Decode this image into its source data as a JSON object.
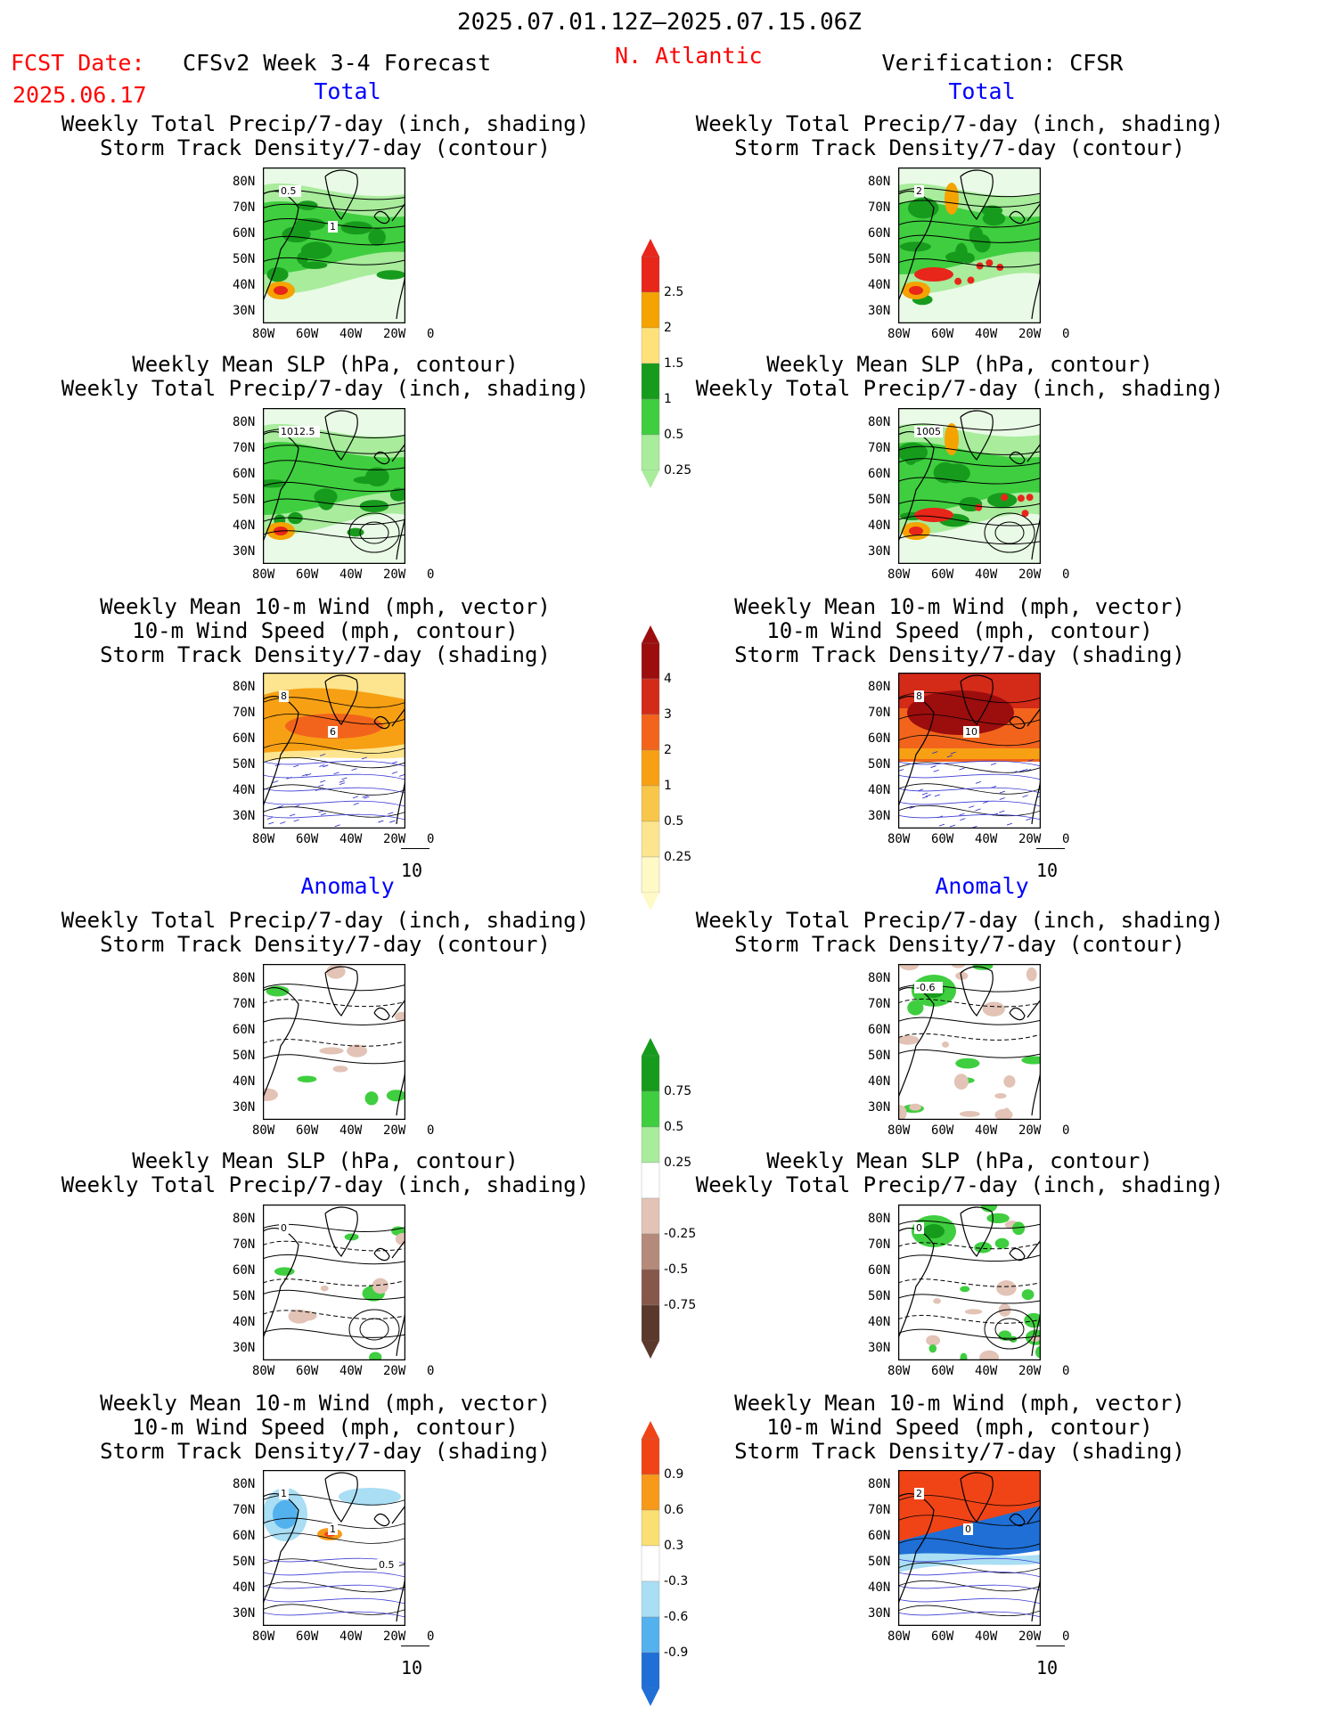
{
  "header": {
    "date_range": "2025.07.01.12Z–2025.07.15.06Z",
    "fcst_label": "FCST Date:",
    "fcst_date": "2025.06.17",
    "model": "CFSv2 Week 3-4 Forecast",
    "region": "N. Atlantic",
    "verification": "Verification: CFSR"
  },
  "sections": {
    "total": "Total",
    "anomaly": "Anomaly"
  },
  "titles": {
    "precip_storm": [
      "Weekly Total Precip/7-day (inch, shading)",
      "Storm Track Density/7-day (contour)"
    ],
    "slp_precip": [
      "Weekly Mean SLP (hPa, contour)",
      "Weekly Total Precip/7-day (inch, shading)"
    ],
    "wind_storm": [
      "Weekly Mean 10-m Wind (mph, vector)",
      "10-m Wind Speed (mph, contour)",
      "Storm Track Density/7-day (shading)"
    ]
  },
  "axes": {
    "lat_ticks": [
      "80N",
      "70N",
      "60N",
      "50N",
      "40N",
      "30N"
    ],
    "lon_ticks": [
      "80W",
      "60W",
      "40W",
      "20W",
      "0"
    ]
  },
  "vector_ref": "10",
  "colorbars": {
    "precip_total": {
      "labels": [
        "2.5",
        "2",
        "1.5",
        "1",
        "0.5",
        "0.25"
      ],
      "colors": [
        "#e8261a",
        "#f5a300",
        "#ffe17a",
        "#179b1d",
        "#3fce3f",
        "#a8ec9c"
      ]
    },
    "storm_total": {
      "labels": [
        "4",
        "3",
        "2",
        "1",
        "0.5",
        "0.25"
      ],
      "colors": [
        "#9c0d0d",
        "#d42a18",
        "#f2641c",
        "#f7a014",
        "#f8c64a",
        "#fde58f",
        "#fff9c6"
      ]
    },
    "precip_anom": {
      "labels": [
        "0.75",
        "0.5",
        "0.25",
        "-0.25",
        "-0.5",
        "-0.75"
      ],
      "colors": [
        "#179b1d",
        "#3fce3f",
        "#a8ec9c",
        "#ffffff",
        "#e2c3b6",
        "#b68a7a",
        "#86584a",
        "#5a382c"
      ]
    },
    "storm_anom": {
      "labels": [
        "0.9",
        "0.6",
        "0.3",
        "-0.3",
        "-0.6",
        "-0.9"
      ],
      "colors": [
        "#f04416",
        "#f79a1a",
        "#fcdf72",
        "#ffffff",
        "#a9def4",
        "#53b1ee",
        "#1f6fd6"
      ]
    }
  },
  "contour_labels": {
    "p1l": [
      "0.5",
      "1"
    ],
    "p1r": [
      "2"
    ],
    "p2l": [
      "1012.5"
    ],
    "p2r": [
      "1005"
    ],
    "p3l": [
      "8",
      "6"
    ],
    "p3r": [
      "8",
      "10"
    ],
    "a1r": [
      "-0.6"
    ],
    "a2l": [
      "0"
    ],
    "a2r": [
      "0"
    ],
    "a3l": [
      "1",
      "1",
      "0.5"
    ],
    "a3r": [
      "2",
      "0"
    ]
  }
}
